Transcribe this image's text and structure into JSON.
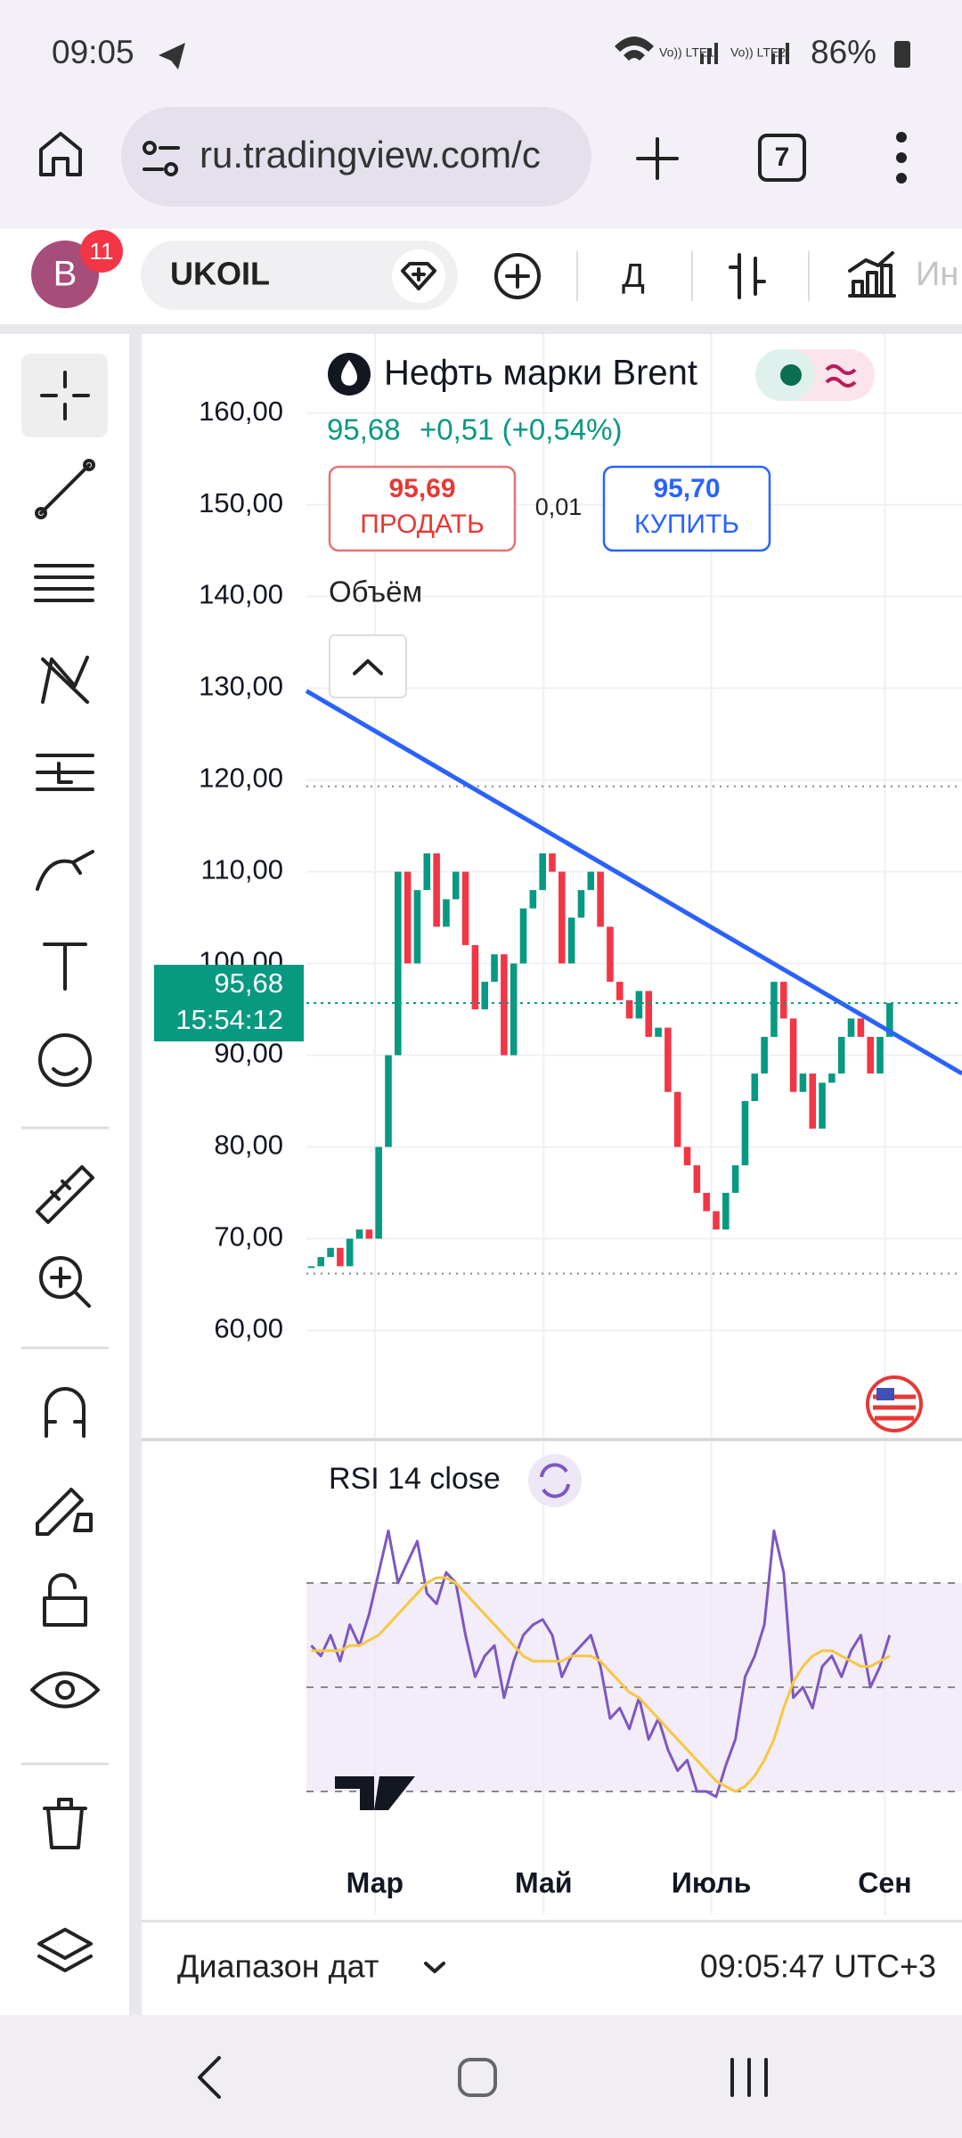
{
  "status_bar": {
    "time": "09:05",
    "battery": "86%"
  },
  "browser": {
    "url": "ru.tradingview.com/c",
    "tab_count": "7"
  },
  "toolbar": {
    "avatar": "B",
    "badge": "11",
    "symbol": "UKOIL",
    "interval": "Д",
    "indicators": "Ин"
  },
  "header": {
    "price": "95,68",
    "change": "+0,51 (+0,54%)",
    "sell_price": "95,69",
    "sell_label": "ПРОДАТЬ",
    "spread": "0,01",
    "buy_price": "95,70",
    "buy_label": "КУПИТЬ",
    "volume": "Объём"
  },
  "chart_data": [
    {
      "type": "candlestick",
      "title": "Нефть марки Brent",
      "values": [
        67,
        68,
        69,
        67,
        70,
        71,
        70,
        80,
        90,
        110,
        100,
        108,
        112,
        104,
        107,
        110,
        102,
        95,
        98,
        101,
        90,
        100,
        106,
        108,
        112,
        110,
        100,
        105,
        108,
        110,
        104,
        98,
        96,
        94,
        97,
        92,
        93,
        86,
        80,
        78,
        75,
        73,
        71,
        75,
        78,
        85,
        88,
        92,
        98,
        94,
        86,
        88,
        82,
        87,
        88,
        92,
        94,
        92,
        88,
        92,
        95.68
      ],
      "up_color": "#089981",
      "down_color": "#f23645",
      "xlim": [
        -0.5,
        67.5
      ],
      "xticks": [
        {
          "value": 6.6,
          "label": "Мар"
        },
        {
          "value": 24.1,
          "label": "Май"
        },
        {
          "value": 41.5,
          "label": "Июль"
        },
        {
          "value": 59.5,
          "label": "Сен"
        }
      ],
      "ylim": [
        48.3,
        168.6
      ],
      "yticks": [
        {
          "value": 160,
          "label": "160,00"
        },
        {
          "value": 150,
          "label": "150,00"
        },
        {
          "value": 140,
          "label": "140,00"
        },
        {
          "value": 130,
          "label": "130,00"
        },
        {
          "value": 120,
          "label": "120,00"
        },
        {
          "value": 110,
          "label": "110,00"
        },
        {
          "value": 100,
          "label": "100,00"
        },
        {
          "value": 90,
          "label": "90,00"
        },
        {
          "value": 80,
          "label": "80,00"
        },
        {
          "value": 70,
          "label": "70,00"
        },
        {
          "value": 60,
          "label": "60,00"
        }
      ],
      "grid": true,
      "trend_line": {
        "x": [
          -0.5,
          67.5
        ],
        "y": [
          129.7,
          88
        ],
        "color": "#2962ff"
      },
      "levels": [
        119.3,
        66.2
      ],
      "last_price": {
        "value": 95.68,
        "label": "95,68",
        "time": "15:54:12"
      }
    },
    {
      "type": "line",
      "title": "RSI 14 close",
      "xlim": [
        -0.5,
        67.5
      ],
      "ylim": [
        14.8,
        93.4
      ],
      "levels": [
        30,
        50,
        70
      ],
      "band": [
        30,
        70
      ],
      "series": [
        {
          "color": "#7e57c2",
          "values": [
            58,
            56,
            60,
            55,
            62,
            58,
            64,
            72,
            80,
            70,
            74,
            78,
            68,
            66,
            72,
            70,
            60,
            52,
            56,
            58,
            48,
            55,
            60,
            62,
            63,
            60,
            52,
            56,
            58,
            60,
            54,
            44,
            46,
            42,
            48,
            40,
            44,
            38,
            34,
            36,
            30,
            30,
            29,
            35,
            40,
            52,
            56,
            62,
            80,
            72,
            48,
            50,
            46,
            54,
            56,
            52,
            57,
            60,
            50,
            54,
            60
          ]
        },
        {
          "color": "#f5c842",
          "values": [
            57,
            57,
            57,
            57,
            58,
            58,
            59,
            60,
            62,
            64,
            66,
            68,
            70,
            71,
            71,
            70,
            68,
            66,
            64,
            62,
            60,
            58,
            56,
            55,
            55,
            55,
            55,
            56,
            56,
            56,
            55,
            53,
            51,
            49,
            48,
            46,
            44,
            42,
            40,
            38,
            36,
            34,
            32,
            31,
            30,
            31,
            33,
            36,
            40,
            46,
            51,
            54,
            56,
            57,
            57,
            56,
            55,
            54,
            54,
            55,
            56
          ]
        }
      ]
    }
  ],
  "footer": {
    "range": "Диапазон дат",
    "clock": "09:05:47 UTC+3"
  }
}
